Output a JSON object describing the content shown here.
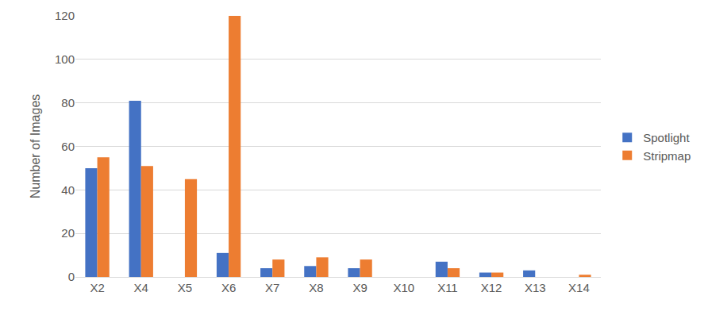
{
  "chart_data": {
    "type": "bar",
    "y_label": "Number of Images",
    "categories": [
      "X2",
      "X4",
      "X5",
      "X6",
      "X7",
      "X8",
      "X9",
      "X10",
      "X11",
      "X12",
      "X13",
      "X14"
    ],
    "series": [
      {
        "name": "Spotlight",
        "color": "#4472c4",
        "values": [
          50,
          81,
          0,
          11,
          4,
          5,
          4,
          0,
          7,
          2,
          3,
          0
        ]
      },
      {
        "name": "Stripmap",
        "color": "#ed7d31",
        "values": [
          55,
          51,
          45,
          120,
          8,
          9,
          8,
          0,
          4,
          2,
          0,
          1
        ]
      }
    ],
    "ylim": [
      0,
      120
    ],
    "yticks": [
      0,
      20,
      40,
      60,
      80,
      100,
      120
    ],
    "grid": true,
    "legend": "right"
  }
}
